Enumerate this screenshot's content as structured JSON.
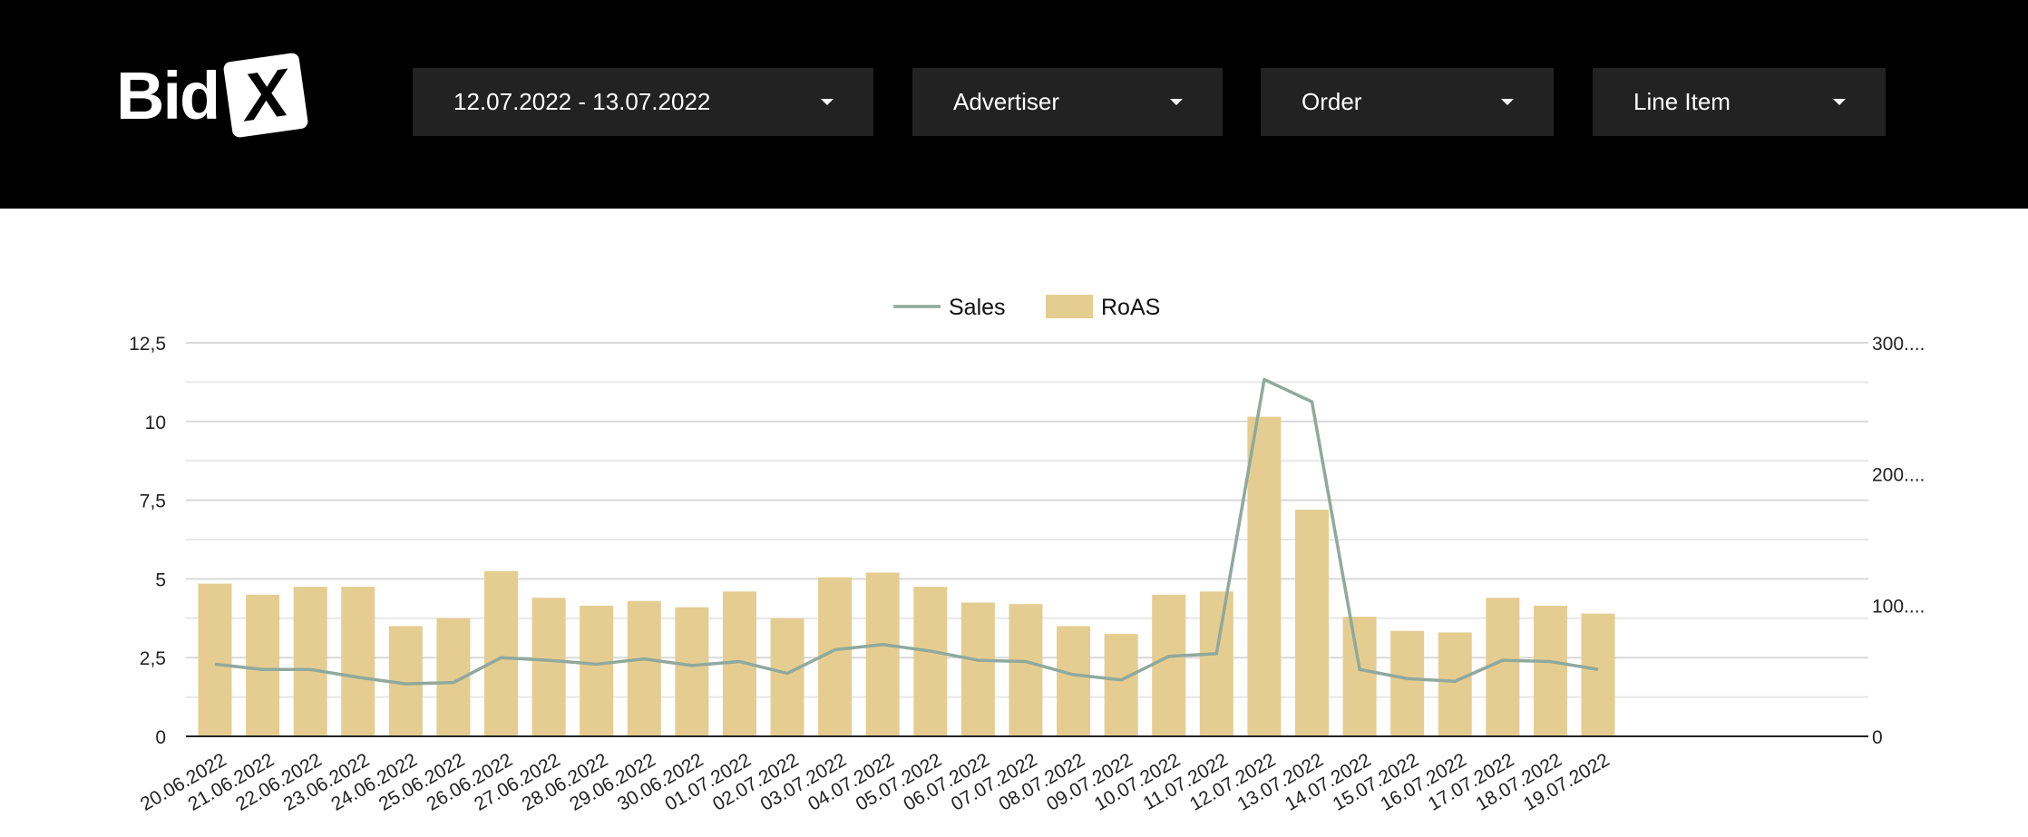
{
  "header": {
    "logo": {
      "text": "Bid",
      "badge": "X"
    },
    "filters": {
      "date_range": "12.07.2022 - 13.07.2022",
      "advertiser": "Advertiser",
      "order": "Order",
      "line_item": "Line Item"
    }
  },
  "colors": {
    "header_bg": "#000000",
    "dropdown_bg": "#222222",
    "bar": "#e5cd91",
    "line": "#8fa99d"
  },
  "chart_data": {
    "type": "bar",
    "categories": [
      "20.06.2022",
      "21.06.2022",
      "22.06.2022",
      "23.06.2022",
      "24.06.2022",
      "25.06.2022",
      "26.06.2022",
      "27.06.2022",
      "28.06.2022",
      "29.06.2022",
      "30.06.2022",
      "01.07.2022",
      "02.07.2022",
      "03.07.2022",
      "04.07.2022",
      "05.07.2022",
      "06.07.2022",
      "07.07.2022",
      "08.07.2022",
      "09.07.2022",
      "10.07.2022",
      "11.07.2022",
      "12.07.2022",
      "13.07.2022",
      "14.07.2022",
      "15.07.2022",
      "16.07.2022",
      "17.07.2022",
      "18.07.2022",
      "19.07.2022"
    ],
    "series": [
      {
        "name": "RoAS",
        "type": "bar",
        "axis": "left",
        "values": [
          4.85,
          4.5,
          4.75,
          4.75,
          3.5,
          3.75,
          5.25,
          4.4,
          4.15,
          4.3,
          4.1,
          4.6,
          3.75,
          5.05,
          5.2,
          4.75,
          4.25,
          4.2,
          3.5,
          3.25,
          4.5,
          4.6,
          10.15,
          7.2,
          3.8,
          3.35,
          3.3,
          4.4,
          4.15,
          3.9
        ]
      },
      {
        "name": "Sales",
        "type": "line",
        "axis": "right",
        "values": [
          55,
          51,
          51,
          45,
          40,
          41,
          60,
          58,
          55,
          59,
          54,
          57,
          48,
          66,
          70,
          65,
          58,
          57,
          47,
          43,
          61,
          63,
          272,
          255,
          51,
          44,
          42,
          58,
          57,
          51
        ]
      }
    ],
    "left_axis": {
      "ticks": [
        "0",
        "2,5",
        "5",
        "7,5",
        "10",
        "12,5"
      ],
      "ylim": [
        0,
        12.5
      ]
    },
    "right_axis": {
      "ticks": [
        "0",
        "100....",
        "200....",
        "300...."
      ],
      "ylim": [
        0,
        300
      ]
    },
    "legend": {
      "placement": "top-center",
      "items": [
        "Sales",
        "RoAS"
      ]
    },
    "grid": true
  }
}
